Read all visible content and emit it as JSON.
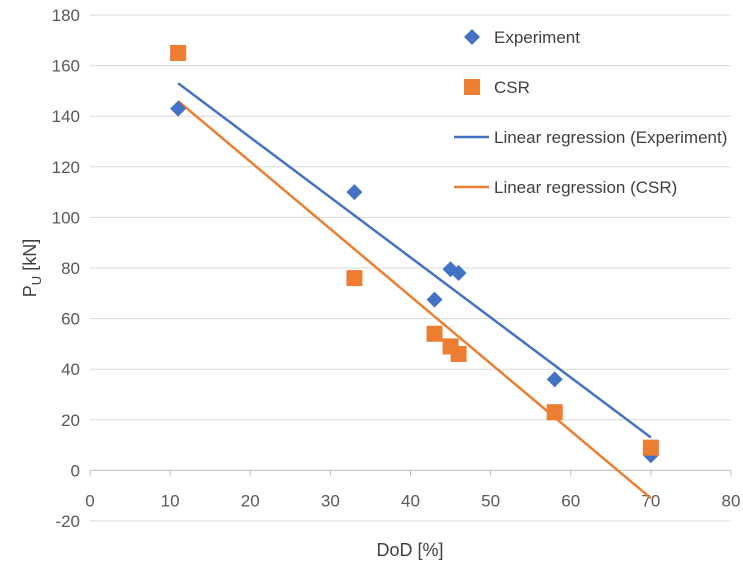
{
  "chart_data": {
    "type": "scatter",
    "xlabel": "DoD [%]",
    "ylabel": {
      "base": "P",
      "sub": "U",
      "rest": " [kN]"
    },
    "xlim": [
      0,
      80
    ],
    "ylim": [
      -20,
      180
    ],
    "xticks": [
      "0",
      "10",
      "20",
      "30",
      "40",
      "50",
      "60",
      "70",
      "80"
    ],
    "yticks": [
      "-20",
      "0",
      "20",
      "40",
      "60",
      "80",
      "100",
      "120",
      "140",
      "160",
      "180"
    ],
    "grid": "horizontal",
    "legend_position": "top-right",
    "series": [
      {
        "name": "Experiment",
        "marker": "diamond",
        "color": "#4472C4",
        "points": [
          [
            11,
            143
          ],
          [
            33,
            110
          ],
          [
            43,
            67.5
          ],
          [
            45,
            79.5
          ],
          [
            46,
            78
          ],
          [
            58,
            36
          ],
          [
            70,
            6
          ]
        ]
      },
      {
        "name": "CSR",
        "marker": "square",
        "color": "#ED7D31",
        "points": [
          [
            11,
            165
          ],
          [
            33,
            76
          ],
          [
            43,
            54
          ],
          [
            45,
            49
          ],
          [
            46,
            46
          ],
          [
            58,
            23
          ],
          [
            70,
            9
          ]
        ]
      }
    ],
    "regressions": [
      {
        "name": "Linear regression (Experiment)",
        "color": "#4472C4",
        "from": [
          11,
          153
        ],
        "to": [
          70,
          13
        ]
      },
      {
        "name": "Linear regression (CSR)",
        "color": "#ED7D31",
        "from": [
          11,
          146
        ],
        "to": [
          70,
          -11
        ]
      }
    ]
  }
}
